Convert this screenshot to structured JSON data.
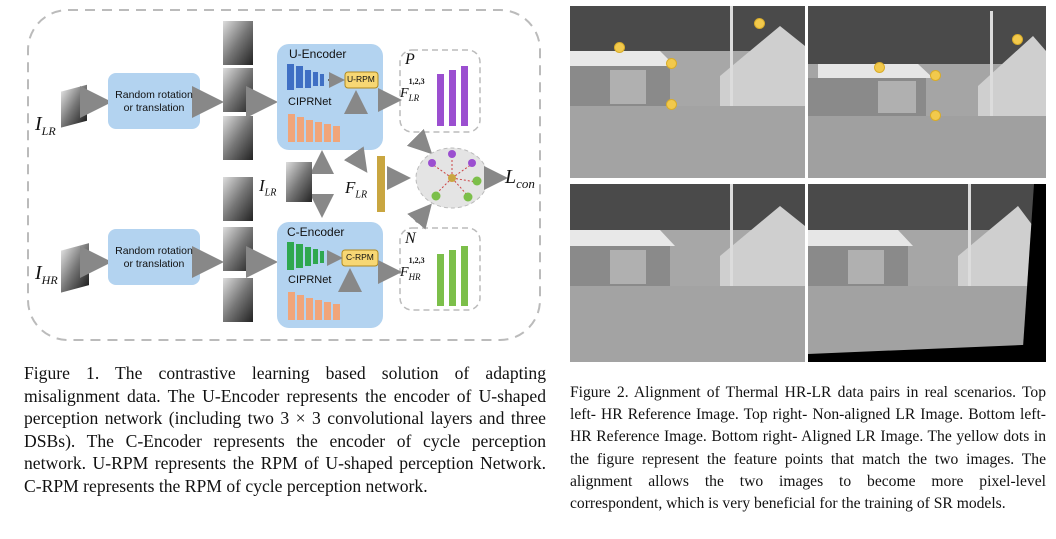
{
  "figure1": {
    "input_lr": "I",
    "input_lr_sub": "LR",
    "input_hr": "I",
    "input_hr_sub": "HR",
    "aug_top": "Random rotation or translation",
    "aug_bottom": "Random rotation or translation",
    "u_encoder": "U-Encoder",
    "c_encoder": "C-Encoder",
    "ciprnet_top": "CIPRNet",
    "ciprnet_bottom": "CIPRNet",
    "u_rpm": "U-RPM",
    "c_rpm": "C-RPM",
    "p_label": "P",
    "n_label": "N",
    "f_lr_top": "F",
    "f_lr_top_sub": "LR",
    "f_lr_top_sup": "1,2,3",
    "f_hr": "F",
    "f_hr_sub": "HR",
    "f_hr_sup": "1,2,3",
    "f_lr_mid": "F",
    "f_lr_mid_sub": "LR",
    "i_lr_mid": "I",
    "i_lr_mid_sub": "LR",
    "loss": "L",
    "loss_sub": "con",
    "colors": {
      "u_blue": "#3f6fc4",
      "c_green": "#2fa84f",
      "salmon": "#f0a57a",
      "purple": "#9b4fd0",
      "leaf_green": "#7cbf4a",
      "box_blue": "#b3d3f0",
      "rpm_yellow": "#f7d774"
    }
  },
  "caption1": "Figure 1.  The contrastive learning based solution of adapting misalignment data. The U-Encoder represents the encoder of U-shaped perception network (including two 3 × 3 convolutional layers and three DSBs). The C-Encoder represents the encoder of cycle perception network. U-RPM represents the RPM of U-shaped perception Network. C-RPM represents the RPM of cycle perception network.",
  "caption2": "Figure 2. Alignment of Thermal HR-LR data pairs in real scenarios. Top left- HR Reference Image. Top right- Non-aligned LR Image. Bottom left- HR Reference Image. Bottom right- Aligned LR Image. The yellow dots in the figure represent the feature points that match the two images. The alignment allows the two images to become more pixel-level correspondent, which is very beneficial for the training of SR models."
}
